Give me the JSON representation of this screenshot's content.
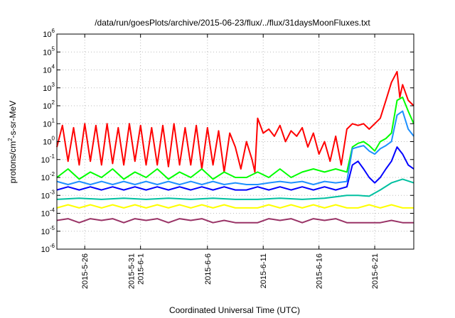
{
  "chart_data": {
    "type": "line",
    "title": "/data/run/goesPlots/archive/2015-06-23/flux/../flux/31daysMoonFluxes.txt",
    "xlabel": "Coordinated Universal Time (UTC)",
    "ylabel": {
      "pre": "protons/cm",
      "sup": "2",
      "post": "-s-sr-MeV"
    },
    "y_scale": "log",
    "xlim": [
      "2015-05-23T12:00",
      "2015-06-24T12:00"
    ],
    "ylim": [
      1e-06,
      1000000.0
    ],
    "grid": true,
    "legend": "none",
    "y_ticks": [
      {
        "value": 1e-06,
        "base": "10",
        "exp": "-6"
      },
      {
        "value": 1e-05,
        "base": "10",
        "exp": "-5"
      },
      {
        "value": 0.0001,
        "base": "10",
        "exp": "-4"
      },
      {
        "value": 0.001,
        "base": "10",
        "exp": "-3"
      },
      {
        "value": 0.01,
        "base": "10",
        "exp": "-2"
      },
      {
        "value": 0.1,
        "base": "10",
        "exp": "-1"
      },
      {
        "value": 1,
        "base": "10",
        "exp": "0"
      },
      {
        "value": 10,
        "base": "10",
        "exp": "1"
      },
      {
        "value": 100,
        "base": "10",
        "exp": "2"
      },
      {
        "value": 1000,
        "base": "10",
        "exp": "3"
      },
      {
        "value": 10000,
        "base": "10",
        "exp": "4"
      },
      {
        "value": 100000,
        "base": "10",
        "exp": "5"
      },
      {
        "value": 1000000,
        "base": "10",
        "exp": "6"
      }
    ],
    "x_ticks": [
      {
        "date": "2015-05-26",
        "lines": [
          "2015-5-26"
        ]
      },
      {
        "date": "2015-05-31",
        "lines": [
          "2015-5-31",
          "2015-6-1"
        ]
      },
      {
        "date": "2015-06-06",
        "lines": [
          "2015-6-6"
        ]
      },
      {
        "date": "2015-06-11",
        "lines": [
          "2015-6-11"
        ]
      },
      {
        "date": "2015-06-16",
        "lines": [
          "2015-6-16"
        ]
      },
      {
        "date": "2015-06-21",
        "lines": [
          "2015-6-21"
        ]
      }
    ],
    "colors": [
      "#ff0000",
      "#00ff00",
      "#1e90ff",
      "#0000ff",
      "#00c0a0",
      "#ffff00",
      "#993366"
    ],
    "series": [
      {
        "color": "#ff0000",
        "x": [
          "2015-05-23T12:00",
          "2015-05-24T00:00",
          "2015-05-24T12:00",
          "2015-05-25T00:00",
          "2015-05-25T12:00",
          "2015-05-26T00:00",
          "2015-05-26T12:00",
          "2015-05-27T00:00",
          "2015-05-27T12:00",
          "2015-05-28T00:00",
          "2015-05-28T12:00",
          "2015-05-29T00:00",
          "2015-05-29T12:00",
          "2015-05-30T00:00",
          "2015-05-30T12:00",
          "2015-05-31T00:00",
          "2015-05-31T12:00",
          "2015-06-01T00:00",
          "2015-06-01T12:00",
          "2015-06-02T00:00",
          "2015-06-02T12:00",
          "2015-06-03T00:00",
          "2015-06-03T12:00",
          "2015-06-04T00:00",
          "2015-06-04T12:00",
          "2015-06-05T00:00",
          "2015-06-05T12:00",
          "2015-06-06T00:00",
          "2015-06-06T12:00",
          "2015-06-07T00:00",
          "2015-06-07T12:00",
          "2015-06-08T00:00",
          "2015-06-08T12:00",
          "2015-06-09T00:00",
          "2015-06-09T12:00",
          "2015-06-10T00:00",
          "2015-06-10T06:00",
          "2015-06-10T12:00",
          "2015-06-11T00:00",
          "2015-06-11T12:00",
          "2015-06-12T00:00",
          "2015-06-12T12:00",
          "2015-06-13T00:00",
          "2015-06-13T12:00",
          "2015-06-14T00:00",
          "2015-06-14T12:00",
          "2015-06-15T00:00",
          "2015-06-15T12:00",
          "2015-06-16T00:00",
          "2015-06-16T12:00",
          "2015-06-17T00:00",
          "2015-06-17T12:00",
          "2015-06-18T00:00",
          "2015-06-18T12:00",
          "2015-06-19T00:00",
          "2015-06-19T12:00",
          "2015-06-20T00:00",
          "2015-06-20T12:00",
          "2015-06-21T00:00",
          "2015-06-21T12:00",
          "2015-06-22T00:00",
          "2015-06-22T12:00",
          "2015-06-23T00:00",
          "2015-06-23T06:00",
          "2015-06-23T12:00",
          "2015-06-24T00:00",
          "2015-06-24T12:00"
        ],
        "y": [
          0.5,
          8,
          0.08,
          6,
          0.05,
          10,
          0.08,
          8,
          0.05,
          10,
          0.06,
          6,
          0.05,
          10,
          0.08,
          8,
          0.05,
          6,
          0.05,
          8,
          0.04,
          10,
          0.05,
          6,
          0.05,
          8,
          0.03,
          6,
          0.05,
          4,
          0.02,
          3,
          0.5,
          0.03,
          1,
          0.1,
          0.02,
          20,
          3,
          5,
          2,
          8,
          1,
          4,
          2,
          6,
          0.5,
          3,
          0.2,
          1,
          0.08,
          2,
          0.05,
          5,
          10,
          8,
          10,
          5,
          10,
          20,
          200,
          2000,
          8000,
          300,
          1500,
          200,
          100
        ]
      },
      {
        "color": "#00ff00",
        "x": [
          "2015-05-23T12:00",
          "2015-05-24T12:00",
          "2015-05-25T12:00",
          "2015-05-26T12:00",
          "2015-05-27T12:00",
          "2015-05-28T12:00",
          "2015-05-29T12:00",
          "2015-05-30T12:00",
          "2015-05-31T12:00",
          "2015-06-01T12:00",
          "2015-06-02T12:00",
          "2015-06-03T12:00",
          "2015-06-04T12:00",
          "2015-06-05T12:00",
          "2015-06-06T12:00",
          "2015-06-07T12:00",
          "2015-06-08T12:00",
          "2015-06-09T12:00",
          "2015-06-10T12:00",
          "2015-06-11T12:00",
          "2015-06-12T12:00",
          "2015-06-13T12:00",
          "2015-06-14T12:00",
          "2015-06-15T12:00",
          "2015-06-16T12:00",
          "2015-06-17T12:00",
          "2015-06-18T12:00",
          "2015-06-19T00:00",
          "2015-06-19T12:00",
          "2015-06-20T00:00",
          "2015-06-20T12:00",
          "2015-06-21T00:00",
          "2015-06-21T12:00",
          "2015-06-22T00:00",
          "2015-06-22T12:00",
          "2015-06-23T00:00",
          "2015-06-23T12:00",
          "2015-06-24T00:00",
          "2015-06-24T12:00"
        ],
        "y": [
          0.01,
          0.03,
          0.008,
          0.02,
          0.01,
          0.03,
          0.008,
          0.02,
          0.01,
          0.03,
          0.008,
          0.02,
          0.01,
          0.03,
          0.008,
          0.02,
          0.01,
          0.01,
          0.02,
          0.01,
          0.03,
          0.01,
          0.02,
          0.03,
          0.02,
          0.03,
          0.02,
          0.5,
          0.8,
          1,
          0.6,
          0.3,
          1,
          1.5,
          3,
          200,
          300,
          50,
          10
        ]
      },
      {
        "color": "#1e90ff",
        "x": [
          "2015-05-23T12:00",
          "2015-05-24T12:00",
          "2015-05-25T12:00",
          "2015-05-26T12:00",
          "2015-05-27T12:00",
          "2015-05-28T12:00",
          "2015-05-29T12:00",
          "2015-05-30T12:00",
          "2015-05-31T12:00",
          "2015-06-01T12:00",
          "2015-06-02T12:00",
          "2015-06-03T12:00",
          "2015-06-04T12:00",
          "2015-06-05T12:00",
          "2015-06-06T12:00",
          "2015-06-07T12:00",
          "2015-06-08T12:00",
          "2015-06-09T12:00",
          "2015-06-10T12:00",
          "2015-06-11T12:00",
          "2015-06-12T12:00",
          "2015-06-13T12:00",
          "2015-06-14T12:00",
          "2015-06-15T12:00",
          "2015-06-16T12:00",
          "2015-06-17T12:00",
          "2015-06-18T12:00",
          "2015-06-19T00:00",
          "2015-06-19T12:00",
          "2015-06-20T00:00",
          "2015-06-20T12:00",
          "2015-06-21T00:00",
          "2015-06-21T12:00",
          "2015-06-22T00:00",
          "2015-06-22T12:00",
          "2015-06-23T00:00",
          "2015-06-23T12:00",
          "2015-06-24T00:00",
          "2015-06-24T12:00"
        ],
        "y": [
          0.006,
          0.004,
          0.006,
          0.004,
          0.006,
          0.004,
          0.006,
          0.004,
          0.006,
          0.004,
          0.006,
          0.004,
          0.006,
          0.004,
          0.006,
          0.004,
          0.005,
          0.004,
          0.004,
          0.005,
          0.006,
          0.005,
          0.006,
          0.004,
          0.006,
          0.005,
          0.006,
          0.4,
          0.5,
          0.6,
          0.3,
          0.2,
          0.4,
          0.6,
          1,
          30,
          50,
          5,
          2
        ]
      },
      {
        "color": "#0000ff",
        "x": [
          "2015-05-23T12:00",
          "2015-05-24T12:00",
          "2015-05-25T12:00",
          "2015-05-26T12:00",
          "2015-05-27T12:00",
          "2015-05-28T12:00",
          "2015-05-29T12:00",
          "2015-05-30T12:00",
          "2015-05-31T12:00",
          "2015-06-01T12:00",
          "2015-06-02T12:00",
          "2015-06-03T12:00",
          "2015-06-04T12:00",
          "2015-06-05T12:00",
          "2015-06-06T12:00",
          "2015-06-07T12:00",
          "2015-06-08T12:00",
          "2015-06-09T12:00",
          "2015-06-10T12:00",
          "2015-06-11T12:00",
          "2015-06-12T12:00",
          "2015-06-13T12:00",
          "2015-06-14T12:00",
          "2015-06-15T12:00",
          "2015-06-16T12:00",
          "2015-06-17T12:00",
          "2015-06-18T12:00",
          "2015-06-19T00:00",
          "2015-06-19T12:00",
          "2015-06-20T00:00",
          "2015-06-20T12:00",
          "2015-06-21T00:00",
          "2015-06-21T12:00",
          "2015-06-22T00:00",
          "2015-06-22T12:00",
          "2015-06-23T00:00",
          "2015-06-23T12:00",
          "2015-06-24T00:00",
          "2015-06-24T12:00"
        ],
        "y": [
          0.002,
          0.003,
          0.002,
          0.003,
          0.002,
          0.003,
          0.002,
          0.003,
          0.002,
          0.003,
          0.002,
          0.003,
          0.002,
          0.003,
          0.002,
          0.003,
          0.002,
          0.002,
          0.003,
          0.002,
          0.003,
          0.002,
          0.003,
          0.002,
          0.003,
          0.002,
          0.003,
          0.05,
          0.08,
          0.03,
          0.01,
          0.005,
          0.01,
          0.03,
          0.08,
          0.5,
          0.2,
          0.05,
          0.03
        ]
      },
      {
        "color": "#00c0a0",
        "x": [
          "2015-05-23T12:00",
          "2015-05-25T12:00",
          "2015-05-27T12:00",
          "2015-05-29T12:00",
          "2015-05-31T12:00",
          "2015-06-02T12:00",
          "2015-06-04T12:00",
          "2015-06-06T12:00",
          "2015-06-08T12:00",
          "2015-06-10T12:00",
          "2015-06-12T12:00",
          "2015-06-14T12:00",
          "2015-06-16T12:00",
          "2015-06-18T12:00",
          "2015-06-19T12:00",
          "2015-06-20T12:00",
          "2015-06-21T12:00",
          "2015-06-22T12:00",
          "2015-06-23T12:00",
          "2015-06-24T12:00"
        ],
        "y": [
          0.0006,
          0.0007,
          0.0006,
          0.0007,
          0.0006,
          0.0007,
          0.0006,
          0.0007,
          0.0006,
          0.0006,
          0.0007,
          0.0006,
          0.0007,
          0.001,
          0.001,
          0.0009,
          0.002,
          0.005,
          0.008,
          0.005
        ]
      },
      {
        "color": "#ffff00",
        "x": [
          "2015-05-23T12:00",
          "2015-05-24T12:00",
          "2015-05-25T12:00",
          "2015-05-26T12:00",
          "2015-05-27T12:00",
          "2015-05-28T12:00",
          "2015-05-29T12:00",
          "2015-05-30T12:00",
          "2015-05-31T12:00",
          "2015-06-01T12:00",
          "2015-06-02T12:00",
          "2015-06-03T12:00",
          "2015-06-04T12:00",
          "2015-06-05T12:00",
          "2015-06-06T12:00",
          "2015-06-07T12:00",
          "2015-06-08T12:00",
          "2015-06-09T12:00",
          "2015-06-10T12:00",
          "2015-06-11T12:00",
          "2015-06-12T12:00",
          "2015-06-13T12:00",
          "2015-06-14T12:00",
          "2015-06-15T12:00",
          "2015-06-16T12:00",
          "2015-06-17T12:00",
          "2015-06-18T12:00",
          "2015-06-19T12:00",
          "2015-06-20T12:00",
          "2015-06-21T12:00",
          "2015-06-22T12:00",
          "2015-06-23T12:00",
          "2015-06-24T12:00"
        ],
        "y": [
          0.0002,
          0.0003,
          0.0002,
          0.0003,
          0.0002,
          0.0003,
          0.0002,
          0.0003,
          0.0002,
          0.0003,
          0.0002,
          0.0003,
          0.0002,
          0.0003,
          0.0002,
          0.0003,
          0.0002,
          0.0002,
          0.0002,
          0.0003,
          0.0002,
          0.0003,
          0.0002,
          0.0003,
          0.0002,
          0.0003,
          0.0002,
          0.0002,
          0.0003,
          0.0002,
          0.0003,
          0.0002,
          0.0002
        ]
      },
      {
        "color": "#993366",
        "x": [
          "2015-05-23T12:00",
          "2015-05-24T12:00",
          "2015-05-25T12:00",
          "2015-05-26T12:00",
          "2015-05-27T12:00",
          "2015-05-28T12:00",
          "2015-05-29T12:00",
          "2015-05-30T12:00",
          "2015-05-31T12:00",
          "2015-06-01T12:00",
          "2015-06-02T12:00",
          "2015-06-03T12:00",
          "2015-06-04T12:00",
          "2015-06-05T12:00",
          "2015-06-06T12:00",
          "2015-06-07T12:00",
          "2015-06-08T12:00",
          "2015-06-09T12:00",
          "2015-06-10T12:00",
          "2015-06-11T12:00",
          "2015-06-12T12:00",
          "2015-06-13T12:00",
          "2015-06-14T12:00",
          "2015-06-15T12:00",
          "2015-06-16T12:00",
          "2015-06-17T12:00",
          "2015-06-18T12:00",
          "2015-06-19T12:00",
          "2015-06-20T12:00",
          "2015-06-21T12:00",
          "2015-06-22T12:00",
          "2015-06-23T12:00",
          "2015-06-24T12:00"
        ],
        "y": [
          4e-05,
          5e-05,
          3e-05,
          5e-05,
          4e-05,
          5e-05,
          3e-05,
          5e-05,
          4e-05,
          5e-05,
          3e-05,
          5e-05,
          4e-05,
          5e-05,
          3e-05,
          4e-05,
          3e-05,
          3e-05,
          3e-05,
          5e-05,
          4e-05,
          5e-05,
          3e-05,
          5e-05,
          4e-05,
          5e-05,
          3e-05,
          3e-05,
          3e-05,
          3e-05,
          4e-05,
          3e-05,
          3e-05
        ]
      }
    ]
  }
}
